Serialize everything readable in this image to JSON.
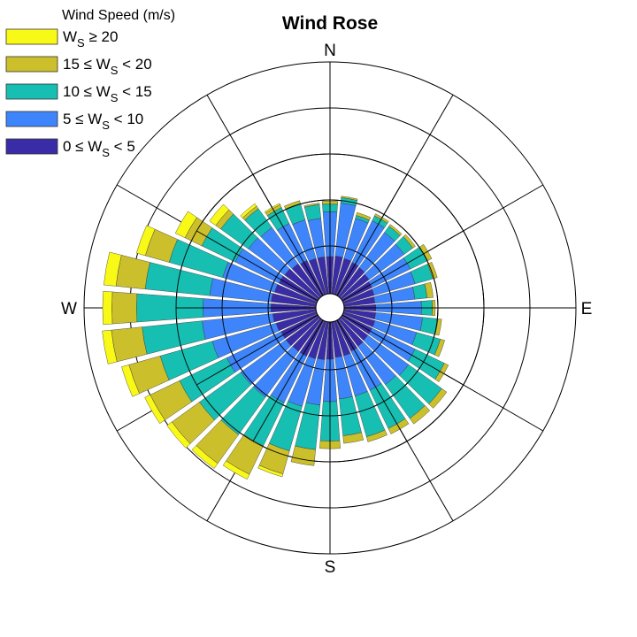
{
  "chart_data": {
    "type": "wind-rose",
    "title": "Wind Rose",
    "legend": {
      "title": "Wind Speed (m/s)",
      "placement": "top-left",
      "entries": [
        {
          "prefix": "W",
          "sub": "S",
          "suffix": " ≥ 20"
        },
        {
          "prefix": "15 ≤ W",
          "sub": "S",
          "suffix": " < 20"
        },
        {
          "prefix": "10 ≤ W",
          "sub": "S",
          "suffix": " < 15"
        },
        {
          "prefix": "5 ≤ W",
          "sub": "S",
          "suffix": " < 10"
        },
        {
          "prefix": "0 ≤ W",
          "sub": "S",
          "suffix": " < 5"
        }
      ]
    },
    "direction_labels": {
      "N": "N",
      "E": "E",
      "S": "S",
      "W": "W"
    },
    "bins": [
      {
        "name": "0 ≤ Ws < 5",
        "color": "#3a2ca6"
      },
      {
        "name": "5 ≤ Ws < 10",
        "color": "#3e85fb"
      },
      {
        "name": "10 ≤ Ws < 15",
        "color": "#17bfb2"
      },
      {
        "name": "15 ≤ Ws < 20",
        "color": "#cbbf2c"
      },
      {
        "name": "Ws ≥ 20",
        "color": "#f9f917"
      }
    ],
    "grid": {
      "rings": 5,
      "spokes": 12,
      "on": true
    },
    "sectors": {
      "count": 36,
      "start_direction_deg": 0,
      "cumulative_radius": [
        [
          0.48,
          1.06,
          1.16,
          1.2,
          1.2
        ],
        [
          0.49,
          1.18,
          1.25,
          1.27,
          1.27
        ],
        [
          0.48,
          1.02,
          1.06,
          1.1,
          1.1
        ],
        [
          0.47,
          1.07,
          1.14,
          1.17,
          1.17
        ],
        [
          0.46,
          1.02,
          1.12,
          1.15,
          1.15
        ],
        [
          0.44,
          1.0,
          1.14,
          1.18,
          1.18
        ],
        [
          0.42,
          0.97,
          1.22,
          1.28,
          1.28
        ],
        [
          0.41,
          0.96,
          1.2,
          1.26,
          1.26
        ],
        [
          0.4,
          0.92,
          1.08,
          1.16,
          1.16
        ],
        [
          0.41,
          1.0,
          1.14,
          1.18,
          1.18
        ],
        [
          0.41,
          1.02,
          1.22,
          1.27,
          1.27
        ],
        [
          0.42,
          0.98,
          1.3,
          1.36,
          1.36
        ],
        [
          0.42,
          1.04,
          1.46,
          1.52,
          1.52
        ],
        [
          0.42,
          1.07,
          1.6,
          1.68,
          1.68
        ],
        [
          0.43,
          1.04,
          1.58,
          1.67,
          1.67
        ],
        [
          0.44,
          1.0,
          1.55,
          1.63,
          1.63
        ],
        [
          0.46,
          1.0,
          1.55,
          1.62,
          1.62
        ],
        [
          0.46,
          1.0,
          1.48,
          1.58,
          1.58
        ],
        [
          0.48,
          1.03,
          1.54,
          1.64,
          1.64
        ],
        [
          0.49,
          1.08,
          1.66,
          1.87,
          1.87
        ],
        [
          0.5,
          1.14,
          1.74,
          2.05,
          2.09
        ],
        [
          0.51,
          1.18,
          1.8,
          2.21,
          2.28
        ],
        [
          0.51,
          1.24,
          1.84,
          2.3,
          2.38
        ],
        [
          0.52,
          1.24,
          1.9,
          2.34,
          2.42
        ],
        [
          0.52,
          1.3,
          1.98,
          2.4,
          2.48
        ],
        [
          0.54,
          1.4,
          2.1,
          2.52,
          2.62
        ],
        [
          0.56,
          1.48,
          2.26,
          2.66,
          2.78
        ],
        [
          0.58,
          1.46,
          2.32,
          2.64,
          2.76
        ],
        [
          0.58,
          1.38,
          2.22,
          2.6,
          2.76
        ],
        [
          0.56,
          1.26,
          1.98,
          2.3,
          2.42
        ],
        [
          0.55,
          1.18,
          1.66,
          1.9,
          2.04
        ],
        [
          0.54,
          1.12,
          1.56,
          1.64,
          1.74
        ],
        [
          0.52,
          1.1,
          1.4,
          1.44,
          1.48
        ],
        [
          0.5,
          1.03,
          1.26,
          1.3,
          1.32
        ],
        [
          0.48,
          1.0,
          1.22,
          1.26,
          1.26
        ],
        [
          0.48,
          0.98,
          1.16,
          1.18,
          1.18
        ]
      ]
    }
  }
}
